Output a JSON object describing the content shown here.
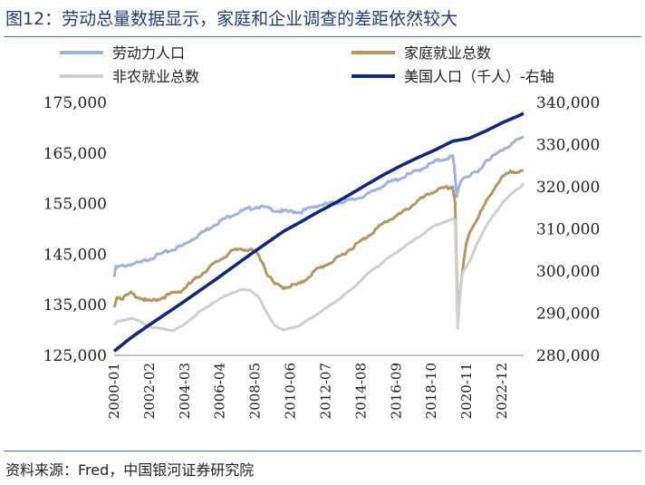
{
  "title": "图12：劳动总量数据显示，家庭和企业调查的差距依然较大",
  "source": "资料来源：Fred，中国银河证券研究院",
  "colors": {
    "labor_force": "#9db3e0",
    "household_employment": "#b8955f",
    "nonfarm_payrolls": "#cfcfcf",
    "us_population": "#10287a",
    "rule": "#4a6fa5",
    "title": "#1f3f7a"
  },
  "chart_data": {
    "type": "line",
    "title": "",
    "x_tick_labels": [
      "2000-01",
      "2002-02",
      "2004-03",
      "2006-04",
      "2008-05",
      "2010-06",
      "2012-07",
      "2014-08",
      "2016-09",
      "2018-10",
      "2020-11",
      "2022-12"
    ],
    "x_range": [
      2000.0,
      2024.2
    ],
    "left_axis": {
      "label": "",
      "ylim": [
        125000,
        175000
      ],
      "ticks": [
        "125,000",
        "135,000",
        "145,000",
        "155,000",
        "165,000",
        "175,000"
      ],
      "tick_values": [
        125000,
        135000,
        145000,
        155000,
        165000,
        175000
      ]
    },
    "right_axis": {
      "label": "",
      "ylim": [
        280000,
        340000
      ],
      "ticks": [
        "280,000",
        "290,000",
        "300,000",
        "310,000",
        "320,000",
        "330,000",
        "340,000"
      ],
      "tick_values": [
        280000,
        290000,
        300000,
        310000,
        320000,
        330000,
        340000
      ]
    },
    "legend": [
      "劳动力人口",
      "家庭就业总数",
      "非农就业总数",
      "美国人口（千人）-右轴"
    ],
    "series": [
      {
        "name": "劳动力人口",
        "axis": "left",
        "color_key": "labor_force",
        "x": [
          2000.0,
          2000.1,
          2000.5,
          2001.0,
          2001.6,
          2002.0,
          2003.0,
          2004.0,
          2005.0,
          2006.0,
          2007.0,
          2008.0,
          2008.5,
          2009.0,
          2009.6,
          2010.0,
          2010.6,
          2011.0,
          2012.0,
          2013.0,
          2014.0,
          2015.0,
          2016.0,
          2017.0,
          2018.0,
          2019.0,
          2020.0,
          2020.1,
          2020.25,
          2020.45,
          2020.7,
          2021.0,
          2021.5,
          2022.0,
          2022.5,
          2023.0,
          2023.5,
          2024.0,
          2024.2
        ],
        "values": [
          140500,
          142500,
          142800,
          143200,
          143500,
          144200,
          145500,
          146800,
          149000,
          151200,
          153000,
          154200,
          154600,
          154300,
          153800,
          153600,
          153600,
          153500,
          154800,
          155300,
          155800,
          157000,
          159000,
          160300,
          161800,
          163500,
          164500,
          162500,
          156500,
          159500,
          160500,
          160700,
          161400,
          163800,
          164700,
          166000,
          167000,
          168000,
          168200
        ]
      },
      {
        "name": "家庭就业总数",
        "axis": "left",
        "color_key": "household_employment",
        "x": [
          2000.0,
          2000.15,
          2000.5,
          2001.0,
          2001.6,
          2002.0,
          2002.5,
          2003.0,
          2003.5,
          2004.0,
          2005.0,
          2006.0,
          2007.0,
          2007.5,
          2008.0,
          2008.4,
          2008.8,
          2009.0,
          2009.5,
          2010.0,
          2011.0,
          2012.0,
          2013.0,
          2014.0,
          2015.0,
          2016.0,
          2017.0,
          2018.0,
          2019.0,
          2020.0,
          2020.15,
          2020.3,
          2020.45,
          2020.6,
          2020.8,
          2021.0,
          2021.5,
          2022.0,
          2022.5,
          2023.0,
          2023.5,
          2024.0,
          2024.2
        ],
        "values": [
          134500,
          136800,
          136500,
          137400,
          136500,
          135800,
          136200,
          136800,
          137500,
          138000,
          140800,
          143500,
          145800,
          146300,
          146000,
          145500,
          143500,
          141500,
          139200,
          138600,
          139300,
          142200,
          143900,
          146300,
          148800,
          151500,
          153300,
          155800,
          157800,
          158500,
          155500,
          133500,
          137800,
          142000,
          147000,
          149500,
          152500,
          155500,
          158500,
          160500,
          161500,
          161700,
          161500
        ]
      },
      {
        "name": "非农就业总数",
        "axis": "left",
        "color_key": "nonfarm_payrolls",
        "x": [
          2000.0,
          2000.2,
          2001.0,
          2001.5,
          2002.0,
          2002.5,
          2003.0,
          2003.5,
          2004.0,
          2005.0,
          2006.0,
          2007.0,
          2007.5,
          2008.0,
          2008.5,
          2009.0,
          2009.5,
          2010.0,
          2011.0,
          2012.0,
          2013.0,
          2014.0,
          2015.0,
          2016.0,
          2017.0,
          2018.0,
          2019.0,
          2020.0,
          2020.15,
          2020.3,
          2020.45,
          2020.6,
          2021.0,
          2021.5,
          2022.0,
          2022.5,
          2023.0,
          2023.5,
          2024.0,
          2024.2
        ],
        "values": [
          131000,
          131700,
          132400,
          131800,
          130800,
          130500,
          130200,
          130000,
          130800,
          133500,
          135800,
          137500,
          138000,
          138000,
          136800,
          133500,
          131000,
          130000,
          131000,
          133200,
          135500,
          138000,
          141200,
          143800,
          146200,
          148500,
          150800,
          152000,
          151800,
          130500,
          137800,
          141500,
          143500,
          147500,
          150800,
          153000,
          155500,
          157000,
          158300,
          159000
        ]
      },
      {
        "name": "美国人口（千人）-右轴",
        "axis": "right",
        "color_key": "us_population",
        "x": [
          2000.0,
          2001.0,
          2002.0,
          2003.0,
          2004.0,
          2005.0,
          2006.0,
          2007.0,
          2008.0,
          2009.0,
          2010.0,
          2011.0,
          2012.0,
          2013.0,
          2014.0,
          2015.0,
          2016.0,
          2017.0,
          2018.0,
          2019.0,
          2020.0,
          2021.0,
          2022.0,
          2023.0,
          2024.0,
          2024.2
        ],
        "values": [
          281000,
          284200,
          287000,
          289700,
          292400,
          295200,
          298000,
          300900,
          303800,
          306600,
          309400,
          311600,
          313900,
          316000,
          318300,
          320700,
          323000,
          325100,
          327000,
          328800,
          330800,
          331500,
          333300,
          335300,
          337000,
          337400
        ]
      }
    ]
  }
}
